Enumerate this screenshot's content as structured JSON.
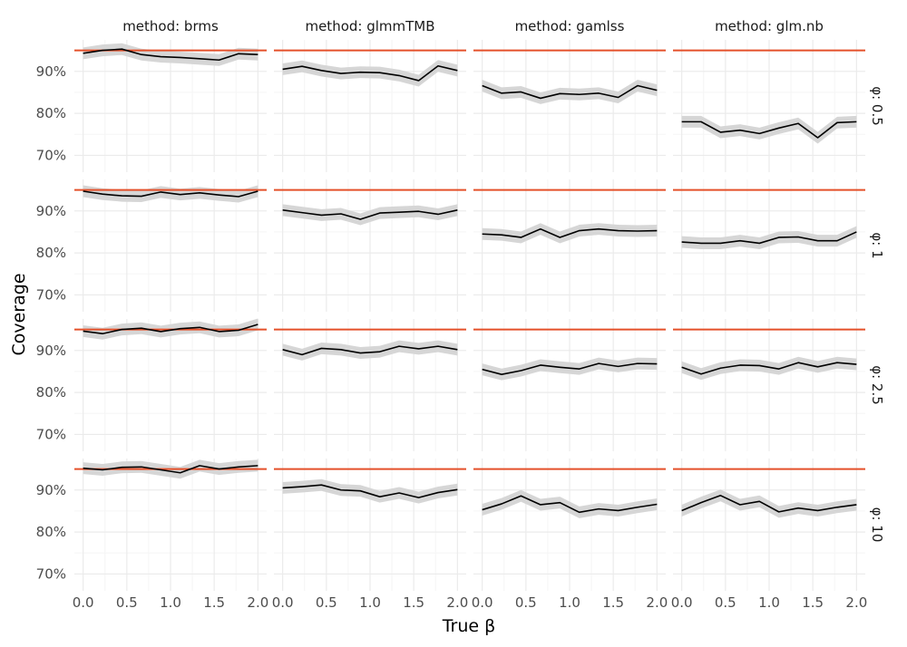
{
  "chart_data": {
    "type": "line",
    "facet_layout": "grid",
    "xlabel": "True β",
    "ylabel": "Coverage",
    "x": [
      0.0,
      0.222,
      0.444,
      0.667,
      0.889,
      1.111,
      1.333,
      1.556,
      1.778,
      2.0
    ],
    "xlim": [
      -0.1,
      2.1
    ],
    "ylim": [
      0.66,
      0.975
    ],
    "xticks": [
      0.0,
      0.5,
      1.0,
      1.5,
      2.0
    ],
    "xtick_labels": [
      "0.0",
      "0.5",
      "1.0",
      "1.5",
      "2.0"
    ],
    "yticks": [
      0.7,
      0.8,
      0.9
    ],
    "ytick_labels": [
      "70%",
      "80%",
      "90%"
    ],
    "reference_line": 0.95,
    "ribbon_halfwidth": 0.014,
    "column_prefix": "method: ",
    "row_prefix": "φ: ",
    "columns": [
      "brms",
      "glmmTMB",
      "gamlss",
      "glm.nb"
    ],
    "rows": [
      "0.5",
      "1",
      "2.5",
      "10"
    ],
    "panels": [
      [
        {
          "values": [
            0.943,
            0.95,
            0.953,
            0.94,
            0.935,
            0.933,
            0.93,
            0.927,
            0.942,
            0.94
          ]
        },
        {
          "values": [
            0.905,
            0.912,
            0.902,
            0.895,
            0.898,
            0.897,
            0.89,
            0.878,
            0.913,
            0.902
          ]
        },
        {
          "values": [
            0.866,
            0.848,
            0.851,
            0.836,
            0.847,
            0.845,
            0.848,
            0.838,
            0.866,
            0.855
          ]
        },
        {
          "values": [
            0.78,
            0.78,
            0.755,
            0.76,
            0.752,
            0.765,
            0.776,
            0.742,
            0.778,
            0.78
          ]
        }
      ],
      [
        {
          "values": [
            0.947,
            0.94,
            0.936,
            0.935,
            0.945,
            0.939,
            0.943,
            0.938,
            0.934,
            0.947
          ]
        },
        {
          "values": [
            0.902,
            0.896,
            0.89,
            0.893,
            0.88,
            0.895,
            0.897,
            0.899,
            0.892,
            0.902
          ]
        },
        {
          "values": [
            0.845,
            0.843,
            0.837,
            0.857,
            0.837,
            0.853,
            0.857,
            0.853,
            0.852,
            0.853
          ]
        },
        {
          "values": [
            0.826,
            0.823,
            0.823,
            0.829,
            0.823,
            0.837,
            0.838,
            0.829,
            0.829,
            0.85
          ]
        }
      ],
      [
        {
          "values": [
            0.946,
            0.94,
            0.95,
            0.953,
            0.945,
            0.952,
            0.955,
            0.945,
            0.948,
            0.962
          ]
        },
        {
          "values": [
            0.902,
            0.89,
            0.905,
            0.902,
            0.894,
            0.897,
            0.91,
            0.904,
            0.91,
            0.902
          ]
        },
        {
          "values": [
            0.855,
            0.843,
            0.852,
            0.865,
            0.86,
            0.856,
            0.869,
            0.862,
            0.869,
            0.868
          ]
        },
        {
          "values": [
            0.86,
            0.844,
            0.858,
            0.865,
            0.864,
            0.856,
            0.871,
            0.861,
            0.871,
            0.867
          ]
        }
      ],
      [
        {
          "values": [
            0.952,
            0.948,
            0.954,
            0.955,
            0.948,
            0.941,
            0.958,
            0.95,
            0.955,
            0.958
          ]
        },
        {
          "values": [
            0.905,
            0.908,
            0.912,
            0.9,
            0.898,
            0.884,
            0.893,
            0.882,
            0.894,
            0.901
          ]
        },
        {
          "values": [
            0.853,
            0.867,
            0.886,
            0.865,
            0.87,
            0.847,
            0.855,
            0.851,
            0.859,
            0.866
          ]
        },
        {
          "values": [
            0.851,
            0.87,
            0.887,
            0.865,
            0.873,
            0.848,
            0.857,
            0.851,
            0.859,
            0.865
          ]
        }
      ]
    ]
  },
  "colors": {
    "line": "#000000",
    "ribbon": "#d6d6d6",
    "reference": "#e4502a",
    "grid_major": "#ebebeb",
    "grid_minor": "#f5f5f5"
  }
}
